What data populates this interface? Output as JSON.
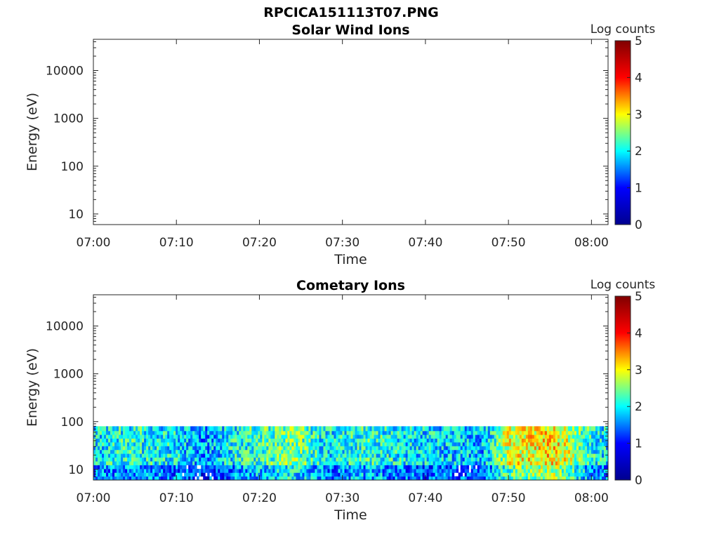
{
  "figure": {
    "filename": "RPCICA151113T07.PNG"
  },
  "colorscale": {
    "label": "Log counts",
    "ticks": [
      "0",
      "1",
      "2",
      "3",
      "4",
      "5"
    ],
    "stops": [
      "#00008f",
      "#0000ff",
      "#00ffff",
      "#ffff00",
      "#ff0000",
      "#800000"
    ]
  },
  "chart_data": [
    {
      "type": "heatmap",
      "title": "Solar Wind Ions",
      "xlabel": "Time",
      "ylabel": "Energy (eV)",
      "x_ticks": [
        "07:00",
        "07:10",
        "07:20",
        "07:30",
        "07:40",
        "07:50",
        "08:00"
      ],
      "y_ticks": [
        "10",
        "100",
        "1000",
        "10000"
      ],
      "y_scale": "log",
      "y_range": [
        6,
        45000
      ],
      "x_range_minutes": [
        0,
        62
      ],
      "zlim": [
        0,
        5
      ],
      "energy_cutoff_ev": null,
      "profile": []
    },
    {
      "type": "heatmap",
      "title": "Cometary Ions",
      "xlabel": "Time",
      "ylabel": "Energy (eV)",
      "x_ticks": [
        "07:00",
        "07:10",
        "07:20",
        "07:30",
        "07:40",
        "07:50",
        "08:00"
      ],
      "y_ticks": [
        "10",
        "100",
        "1000",
        "10000"
      ],
      "y_scale": "log",
      "y_range": [
        6,
        45000
      ],
      "x_range_minutes": [
        0,
        62
      ],
      "zlim": [
        0,
        5
      ],
      "energy_cutoff_ev": 80,
      "profile": [
        {
          "t": 0,
          "log_counts": 1.8
        },
        {
          "t": 5,
          "log_counts": 2.0
        },
        {
          "t": 10,
          "log_counts": 1.8
        },
        {
          "t": 13,
          "log_counts": 1.4
        },
        {
          "t": 18,
          "log_counts": 2.0
        },
        {
          "t": 24,
          "log_counts": 2.5
        },
        {
          "t": 28,
          "log_counts": 1.8
        },
        {
          "t": 33,
          "log_counts": 2.1
        },
        {
          "t": 38,
          "log_counts": 1.8
        },
        {
          "t": 42,
          "log_counts": 1.7
        },
        {
          "t": 47,
          "log_counts": 1.5
        },
        {
          "t": 50,
          "log_counts": 2.9
        },
        {
          "t": 55,
          "log_counts": 3.3
        },
        {
          "t": 57,
          "log_counts": 2.9
        },
        {
          "t": 60,
          "log_counts": 2.0
        },
        {
          "t": 62,
          "log_counts": 1.8
        }
      ]
    }
  ]
}
